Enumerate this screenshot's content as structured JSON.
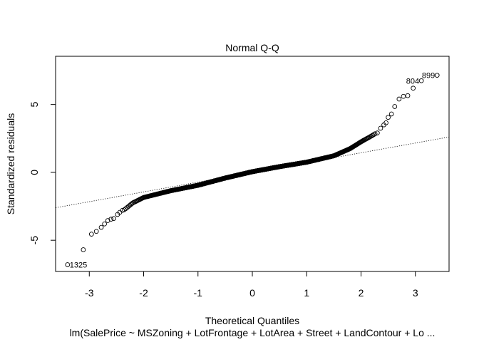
{
  "chart_data": {
    "type": "scatter",
    "title": "Normal Q-Q",
    "xlabel": "Theoretical Quantiles",
    "ylabel": "Standardized residuals",
    "subtitle": "lm(SalePrice ~ MSZoning + LotFrontage + LotArea + Street + LandContour + Lo ...",
    "xlim": [
      -3.62,
      3.62
    ],
    "ylim": [
      -7.3,
      8.55
    ],
    "x_ticks": [
      -3,
      -2,
      -1,
      0,
      1,
      2,
      3
    ],
    "y_ticks": [
      -5,
      0,
      5
    ],
    "reference_line": {
      "intercept": 0.0,
      "slope": 0.72,
      "style": "dotted"
    },
    "grid": false,
    "points_summary": "1460 points, open circles",
    "anchor_points": [
      [
        -3.4,
        -6.8
      ],
      [
        -3.11,
        -5.7
      ],
      [
        -2.96,
        -4.55
      ],
      [
        -2.87,
        -4.35
      ],
      [
        -2.78,
        -4.05
      ],
      [
        -2.7,
        -3.75
      ],
      [
        -2.58,
        -3.45
      ],
      [
        -2.4,
        -2.9
      ],
      [
        -2.2,
        -2.25
      ],
      [
        -2.0,
        -1.85
      ],
      [
        -1.5,
        -1.35
      ],
      [
        -1.0,
        -0.95
      ],
      [
        -0.5,
        -0.42
      ],
      [
        0.0,
        0.05
      ],
      [
        0.5,
        0.42
      ],
      [
        1.0,
        0.75
      ],
      [
        1.5,
        1.22
      ],
      [
        1.8,
        1.75
      ],
      [
        2.0,
        2.25
      ],
      [
        2.2,
        2.7
      ],
      [
        2.3,
        2.95
      ],
      [
        2.38,
        3.35
      ],
      [
        2.48,
        3.9
      ],
      [
        2.58,
        4.45
      ],
      [
        2.68,
        5.05
      ],
      [
        2.78,
        5.45
      ],
      [
        2.88,
        5.7
      ],
      [
        3.0,
        6.3
      ],
      [
        3.11,
        6.75
      ],
      [
        3.4,
        7.15
      ]
    ],
    "labeled_points": [
      {
        "label": "1325",
        "x": -3.4,
        "y": -6.8,
        "side": "right"
      },
      {
        "label": "804",
        "x": 3.11,
        "y": 6.75,
        "side": "left"
      },
      {
        "label": "899",
        "x": 3.4,
        "y": 7.15,
        "side": "left"
      }
    ],
    "tail_points": [
      [
        -3.4,
        -6.8
      ],
      [
        -3.11,
        -5.7
      ],
      [
        -2.96,
        -4.55
      ],
      [
        -2.87,
        -4.35
      ],
      [
        -2.78,
        -4.05
      ],
      [
        -2.72,
        -3.8
      ],
      [
        -2.66,
        -3.55
      ],
      [
        -2.6,
        -3.45
      ],
      [
        -2.55,
        -3.4
      ],
      [
        -2.48,
        -3.1
      ],
      [
        -2.44,
        -2.95
      ],
      [
        -2.39,
        -2.8
      ],
      [
        2.3,
        2.9
      ],
      [
        2.36,
        3.25
      ],
      [
        2.42,
        3.5
      ],
      [
        2.46,
        3.65
      ],
      [
        2.5,
        4.05
      ],
      [
        2.56,
        4.3
      ],
      [
        2.62,
        4.85
      ],
      [
        2.7,
        5.4
      ],
      [
        2.78,
        5.6
      ],
      [
        2.86,
        5.65
      ],
      [
        2.96,
        6.2
      ],
      [
        3.11,
        6.75
      ],
      [
        3.4,
        7.15
      ]
    ]
  }
}
